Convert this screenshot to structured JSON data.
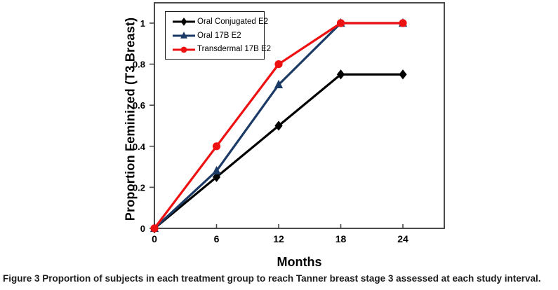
{
  "figure": {
    "caption_label": "Figure 3",
    "caption_text": "Proportion of subjects in each treatment group to reach Tanner breast stage 3 assessed at each study interval."
  },
  "chart_data": {
    "type": "line",
    "title": "",
    "xlabel": "Months",
    "ylabel": "Proportion Feminized (T3 Breast)",
    "x": [
      0,
      6,
      12,
      18,
      24
    ],
    "xticks": [
      0,
      6,
      12,
      18,
      24
    ],
    "yticks": [
      0,
      0.2,
      0.4,
      0.6,
      0.8,
      1
    ],
    "xlim": [
      0,
      28
    ],
    "ylim": [
      0,
      1.1
    ],
    "grid": false,
    "legend_position": "top-left-inside",
    "frame_color": "#4a4a4a",
    "series": [
      {
        "name": "Oral Conjugated E2",
        "color": "#000000",
        "marker": "diamond",
        "values": [
          0,
          0.25,
          0.5,
          0.75,
          0.75
        ]
      },
      {
        "name": "Oral 17B E2",
        "color": "#1b3a66",
        "marker": "triangle",
        "values": [
          0,
          0.28,
          0.7,
          1,
          1
        ]
      },
      {
        "name": "Transdermal 17B E2",
        "color": "#ee1111",
        "marker": "circle",
        "values": [
          0,
          0.4,
          0.8,
          1,
          1
        ]
      }
    ]
  }
}
